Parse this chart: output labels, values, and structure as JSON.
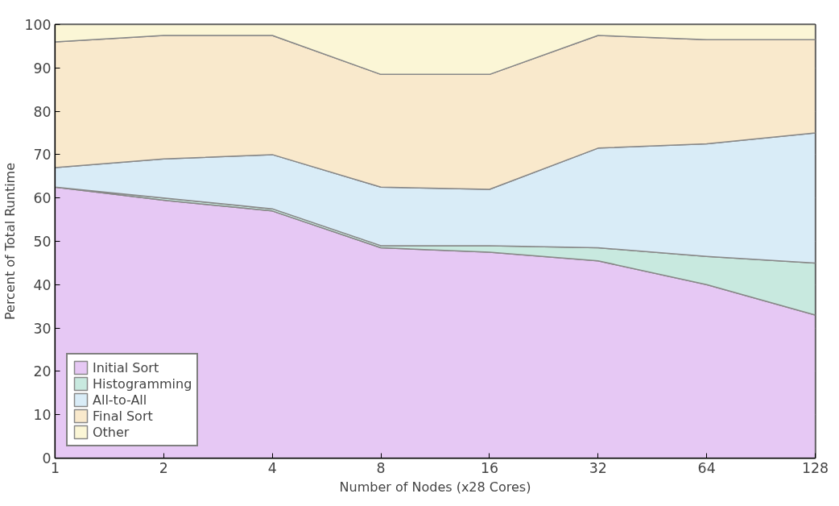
{
  "chart_data": {
    "type": "area",
    "stacked": true,
    "xlabel": "Number of Nodes (x28 Cores)",
    "ylabel": "Percent of Total Runtime",
    "categories": [
      "1",
      "2",
      "4",
      "8",
      "16",
      "32",
      "64",
      "128"
    ],
    "series": [
      {
        "name": "Initial Sort",
        "color": "#e6c8f4",
        "values": [
          62.5,
          59.5,
          57,
          48.5,
          47.5,
          45.5,
          40,
          33
        ]
      },
      {
        "name": "Histogramming",
        "color": "#c8e9df",
        "values": [
          0,
          0.5,
          0.5,
          0.5,
          1.5,
          3,
          6.5,
          12
        ]
      },
      {
        "name": "All-to-All",
        "color": "#d9ecf7",
        "values": [
          4.5,
          9,
          12.5,
          13.5,
          13,
          23,
          26,
          30
        ]
      },
      {
        "name": "Final Sort",
        "color": "#f9e9cc",
        "values": [
          29,
          28.5,
          27.5,
          26,
          26.5,
          26,
          24,
          21.5
        ]
      },
      {
        "name": "Other",
        "color": "#fbf6d6",
        "values": [
          4,
          2.5,
          2.5,
          11.5,
          11.5,
          2.5,
          3.5,
          3.5
        ]
      }
    ],
    "ylim": [
      0,
      100
    ],
    "yticks": [
      0,
      10,
      20,
      30,
      40,
      50,
      60,
      70,
      80,
      90,
      100
    ],
    "grid": true,
    "legend": "bottom left"
  }
}
